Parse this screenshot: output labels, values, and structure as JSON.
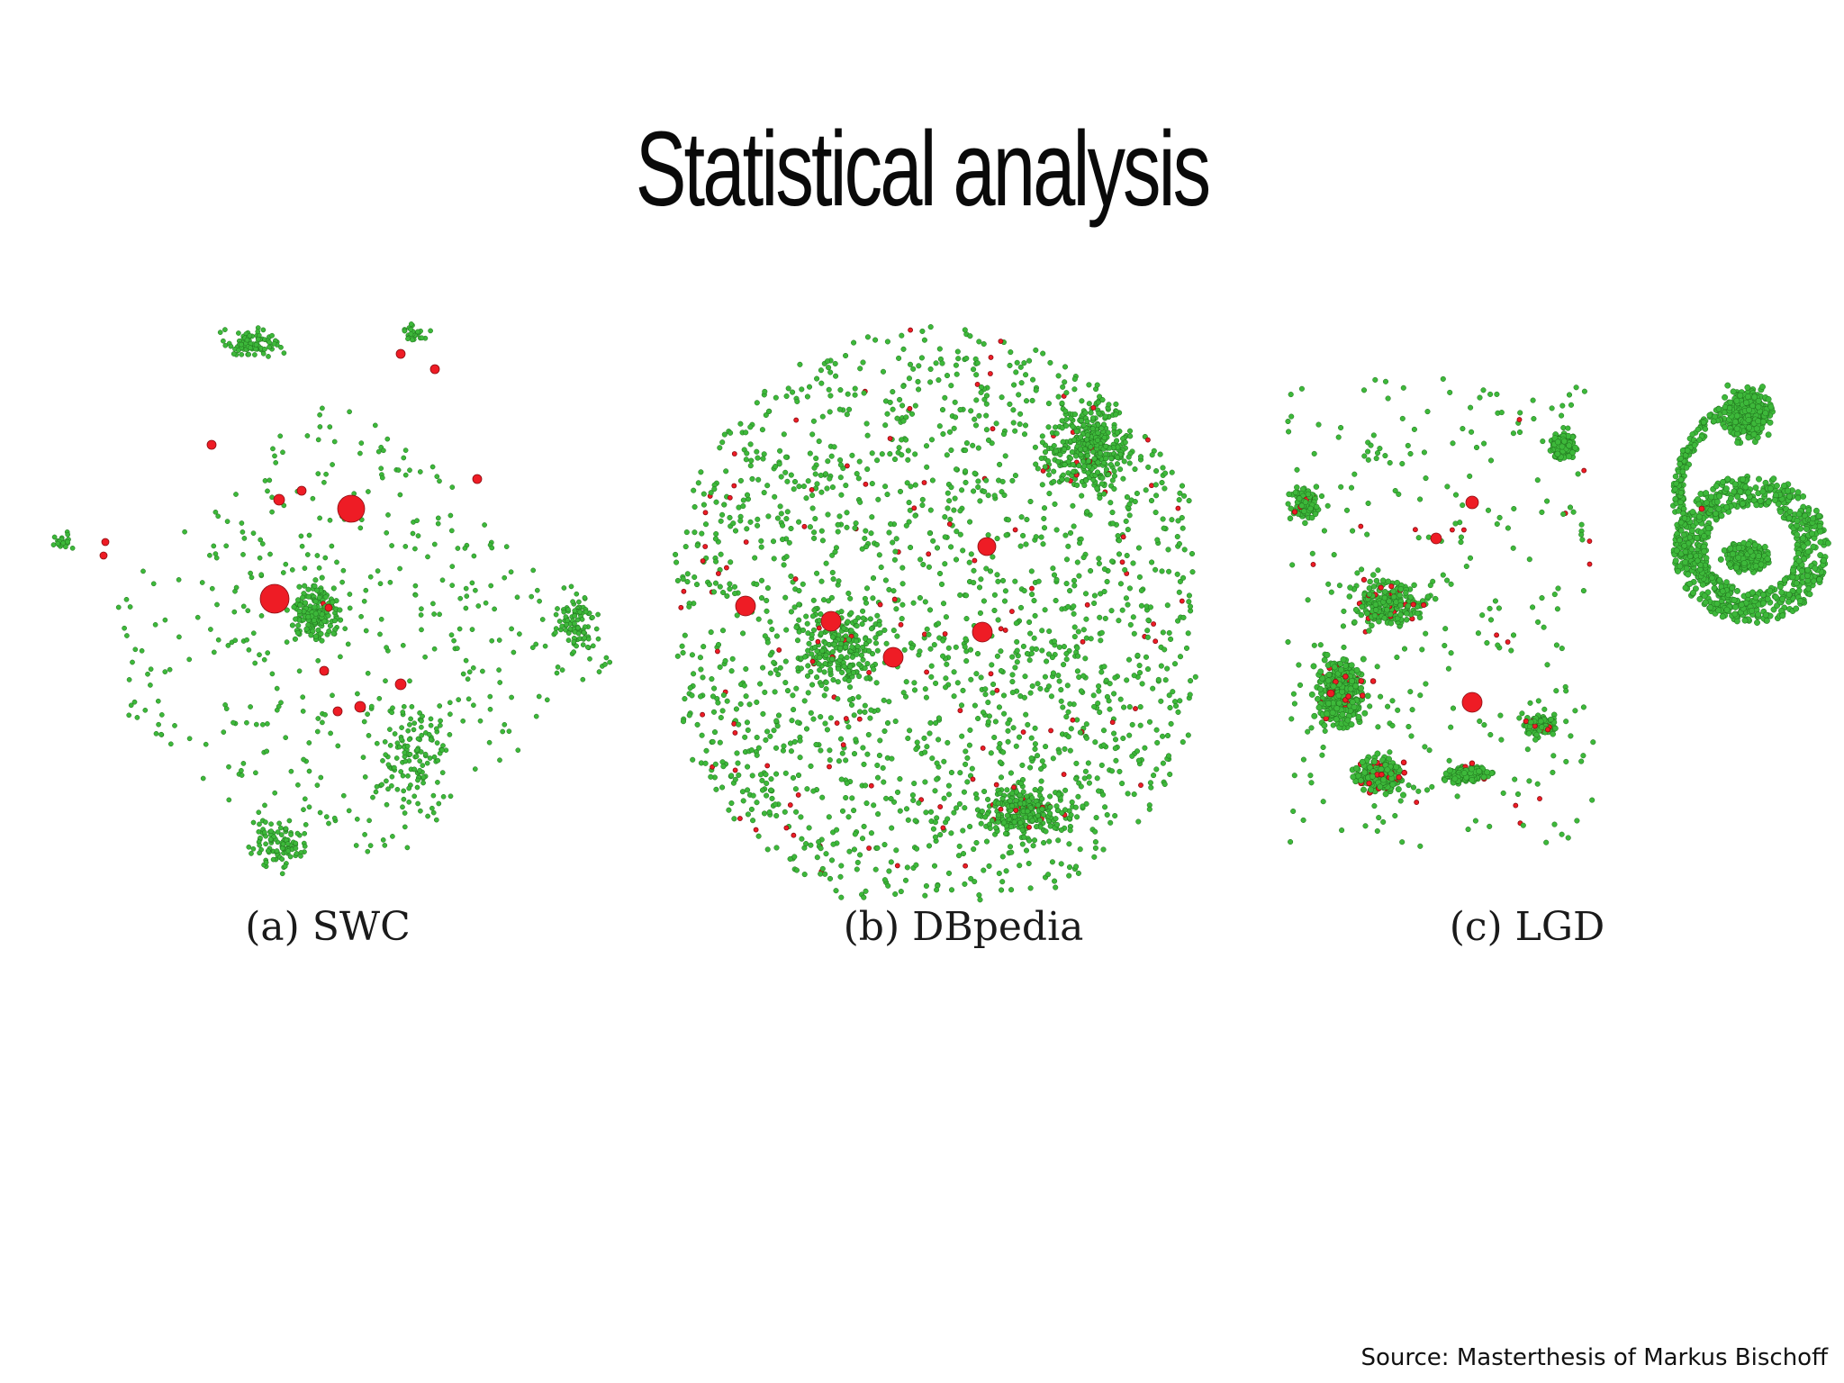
{
  "slide": {
    "title": "Statistical analysis",
    "source": "Source: Masterthesis of Markus Bischoff"
  },
  "colors": {
    "non_central_node": "#3db83a",
    "non_central_node_stroke": "#1f6e1c",
    "central_node": "#ee1c25",
    "central_node_stroke": "#8a0d12",
    "background": "#ffffff"
  },
  "figures": [
    {
      "key": "swc",
      "caption": "(a) SWC"
    },
    {
      "key": "dbpedia",
      "caption": "(b) DBpedia"
    },
    {
      "key": "lgd",
      "caption": "(c) LGD"
    }
  ]
}
